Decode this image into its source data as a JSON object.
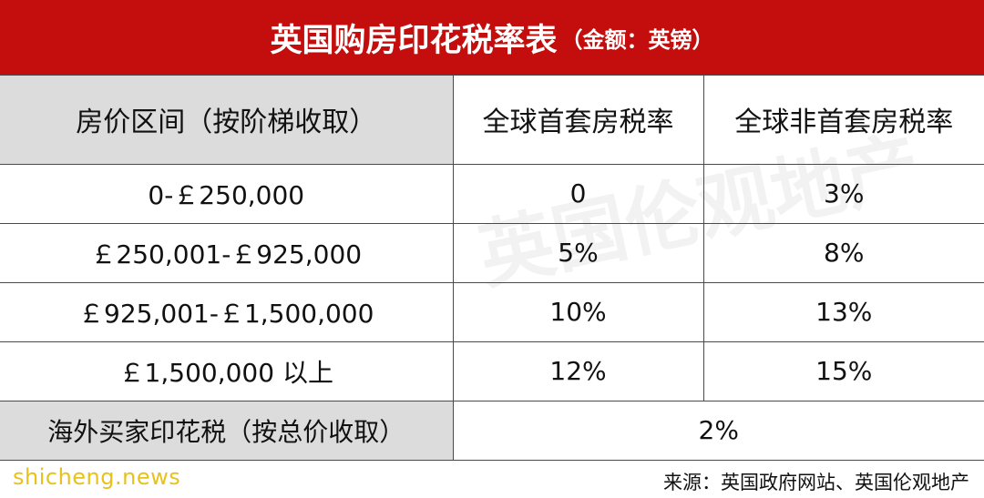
{
  "header": {
    "title": "英国购房印花税率表",
    "subtitle": "（金额：英镑）"
  },
  "table": {
    "columns": [
      "房价区间（按阶梯收取）",
      "全球首套房税率",
      "全球非首套房税率"
    ],
    "rows": [
      [
        "0-￡250,000",
        "0",
        "3%"
      ],
      [
        "￡250,001-￡925,000",
        "5%",
        "8%"
      ],
      [
        "￡925,001-￡1,500,000",
        "10%",
        "13%"
      ],
      [
        "￡1,500,000 以上",
        "12%",
        "15%"
      ]
    ],
    "overseas": {
      "label": "海外买家印花税（按总价收取）",
      "value": "2%"
    }
  },
  "footer": {
    "logo": "shicheng.news",
    "source": "来源：英国政府网站、英国伦观地产"
  },
  "watermark": "英国伦观地产",
  "colors": {
    "title_bar": "#c40d0d",
    "label_cell": "#dcdcdc",
    "logo": "#e8c21a"
  }
}
